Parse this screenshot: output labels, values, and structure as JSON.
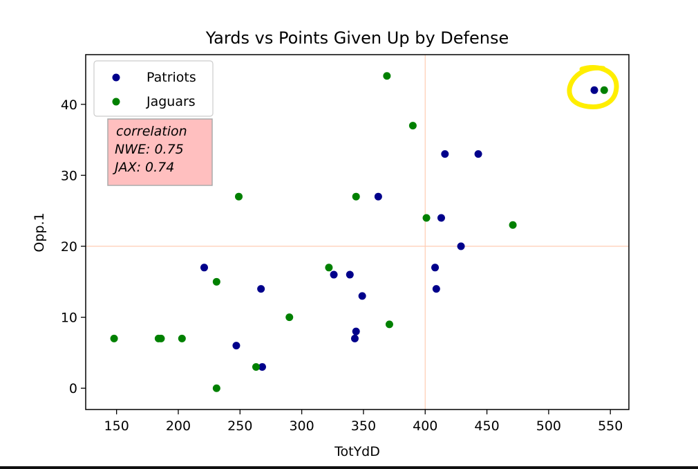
{
  "chart_data": {
    "type": "scatter",
    "title": "Yards vs Points Given Up by Defense",
    "xlabel": "TotYdD",
    "ylabel": "Opp.1",
    "xlim": [
      125,
      565
    ],
    "ylim": [
      -3,
      47
    ],
    "xticks": [
      150,
      200,
      250,
      300,
      350,
      400,
      450,
      500,
      550
    ],
    "yticks": [
      0,
      10,
      20,
      30,
      40
    ],
    "grid": false,
    "legend_placement": "top-left",
    "series": [
      {
        "name": "Patriots",
        "color": "#00008b",
        "points": [
          [
            221,
            17
          ],
          [
            247,
            6
          ],
          [
            267,
            14
          ],
          [
            268,
            3
          ],
          [
            326,
            16
          ],
          [
            339,
            16
          ],
          [
            344,
            8
          ],
          [
            343,
            7
          ],
          [
            349,
            13
          ],
          [
            362,
            27
          ],
          [
            408,
            17
          ],
          [
            409,
            14
          ],
          [
            413,
            24
          ],
          [
            416,
            33
          ],
          [
            429,
            20
          ],
          [
            443,
            33
          ],
          [
            537,
            42
          ]
        ]
      },
      {
        "name": "Jaguars",
        "color": "#008000",
        "points": [
          [
            148,
            7
          ],
          [
            184,
            7
          ],
          [
            186,
            7
          ],
          [
            203,
            7
          ],
          [
            231,
            0
          ],
          [
            231,
            15
          ],
          [
            249,
            27
          ],
          [
            263,
            3
          ],
          [
            290,
            10
          ],
          [
            322,
            17
          ],
          [
            344,
            27
          ],
          [
            369,
            44
          ],
          [
            371,
            9
          ],
          [
            390,
            37
          ],
          [
            401,
            24
          ],
          [
            471,
            23
          ],
          [
            545,
            42
          ]
        ]
      }
    ],
    "reference_lines": {
      "x": 400,
      "y": 20,
      "color": "#ffccb3"
    },
    "annotation": {
      "lines": [
        "correlation",
        "NWE: 0.75",
        "JAX: 0.74"
      ],
      "background": "#ffbfbf"
    },
    "highlight": {
      "target": [
        545,
        42
      ],
      "color": "#ffee00"
    }
  }
}
